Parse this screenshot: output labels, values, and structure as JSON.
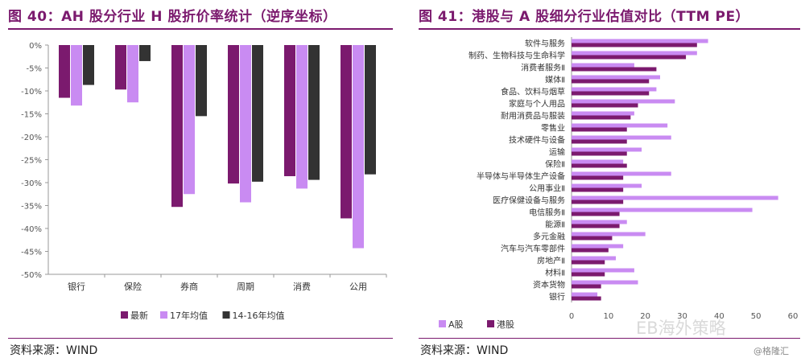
{
  "left": {
    "title": "图 40：AH 股分行业 H 股折价率统计（逆序坐标）",
    "source": "资料来源：WIND"
  },
  "right": {
    "title": "图 41：港股与 A 股细分行业估值对比（TTM PE）",
    "source": "资料来源：WIND"
  },
  "watermark": {
    "text": "EB海外策略",
    "credit": "@格隆汇"
  },
  "colors": {
    "purple": "#7b1a6e",
    "lilac": "#c98bf2",
    "dark": "#333333",
    "rule": "#7b1a6e"
  },
  "chart_data": [
    {
      "type": "bar",
      "categories": [
        "银行",
        "保险",
        "券商",
        "周期",
        "消费",
        "公用"
      ],
      "series": [
        {
          "name": "最新",
          "values": [
            -11.5,
            -9.7,
            -35.3,
            -30.2,
            -28.6,
            -37.8
          ]
        },
        {
          "name": "17年均值",
          "values": [
            -13.2,
            -12.5,
            -32.5,
            -34.3,
            -31.3,
            -44.3
          ]
        },
        {
          "name": "14-16年均值",
          "values": [
            -8.7,
            -3.5,
            -15.5,
            -29.8,
            -29.4,
            -28.2
          ]
        }
      ],
      "yticks": [
        "0%",
        "-5%",
        "-10%",
        "-15%",
        "-20%",
        "-25%",
        "-30%",
        "-35%",
        "-40%",
        "-45%",
        "-50%"
      ],
      "ylim": [
        0,
        -50
      ],
      "y_inverted": true,
      "legend_position": "bottom"
    },
    {
      "type": "bar",
      "orientation": "horizontal",
      "categories": [
        "软件与服务",
        "制药、生物科技与生命科学",
        "消费者服务Ⅱ",
        "媒体Ⅱ",
        "食品、饮料与烟草",
        "家庭与个人用品",
        "耐用消费品与服装",
        "零售业",
        "技术硬件与设备",
        "运输",
        "保险Ⅱ",
        "半导体与半导体生产设备",
        "公用事业Ⅱ",
        "医疗保健设备与服务",
        "电信服务Ⅱ",
        "能源Ⅱ",
        "多元金融",
        "汽车与汽车零部件",
        "房地产Ⅱ",
        "材料Ⅱ",
        "资本货物",
        "银行"
      ],
      "series": [
        {
          "name": "A股",
          "values": [
            37,
            34,
            17,
            24,
            23,
            28,
            17,
            26,
            27,
            19,
            14,
            27,
            19,
            56,
            49,
            15,
            20,
            14,
            12,
            17,
            18,
            7
          ]
        },
        {
          "name": "港股",
          "values": [
            34,
            31,
            23,
            21,
            21,
            18,
            16,
            15,
            15,
            15,
            15,
            14,
            14,
            14,
            13,
            13,
            11,
            10,
            9,
            9,
            8,
            8
          ]
        }
      ],
      "xticks": [
        "0",
        "10",
        "20",
        "30",
        "40",
        "50",
        "60"
      ],
      "xlim": [
        0,
        60
      ],
      "legend_position": "bottom-left"
    }
  ]
}
